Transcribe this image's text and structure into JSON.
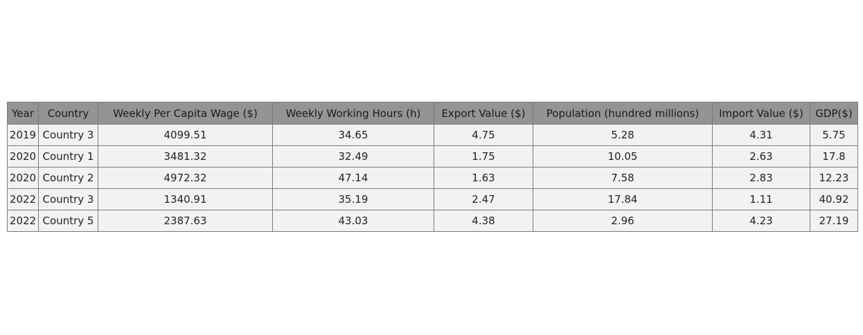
{
  "chart_data": {
    "type": "table",
    "columns": [
      "Year",
      "Country",
      "Weekly Per Capita Wage ($)",
      "Weekly Working Hours (h)",
      "Export Value ($)",
      "Population (hundred millions)",
      "Import Value ($)",
      "GDP($)"
    ],
    "rows": [
      [
        "2019",
        "Country 3",
        "4099.51",
        "34.65",
        "4.75",
        "5.28",
        "4.31",
        "5.75"
      ],
      [
        "2020",
        "Country 1",
        "3481.32",
        "32.49",
        "1.75",
        "10.05",
        "2.63",
        "17.8"
      ],
      [
        "2020",
        "Country 2",
        "4972.32",
        "47.14",
        "1.63",
        "7.58",
        "2.83",
        "12.23"
      ],
      [
        "2022",
        "Country 3",
        "1340.91",
        "35.19",
        "2.47",
        "17.84",
        "1.11",
        "40.92"
      ],
      [
        "2022",
        "Country 5",
        "2387.63",
        "43.03",
        "4.38",
        "2.96",
        "4.23",
        "27.19"
      ]
    ]
  },
  "colors": {
    "header_bg": "#939592",
    "cell_bg": "#f2f2f2",
    "border": "#7a7a7a"
  }
}
